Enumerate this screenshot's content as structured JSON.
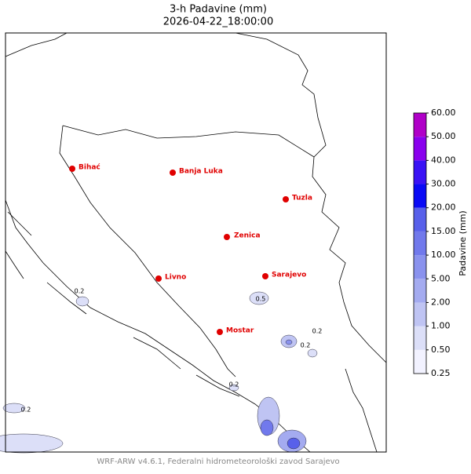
{
  "title": "3-h Padavine (mm)",
  "subtitle": "2026-04-22_18:00:00",
  "cities": [
    {
      "name": "Bihać"
    },
    {
      "name": "Banja Luka"
    },
    {
      "name": "Tuzla"
    },
    {
      "name": "Zenica"
    },
    {
      "name": "Livno"
    },
    {
      "name": "Sarajevo"
    },
    {
      "name": "Mostar"
    }
  ],
  "contour_labels": [
    "0.2",
    "0.5",
    "0.2",
    "0.2",
    "0.2",
    "0.2"
  ],
  "colorbar": {
    "label": "Padavine (mm)",
    "levels": [
      "0.25",
      "0.50",
      "1.00",
      "2.00",
      "5.00",
      "10.00",
      "15.00",
      "20.00",
      "30.00",
      "40.00",
      "50.00",
      "60.00"
    ],
    "colors": [
      "#f2f2ff",
      "#dcdff8",
      "#bfc4f3",
      "#a4abf0",
      "#8a92ee",
      "#7179ec",
      "#5860ea",
      "#0a0af5",
      "#3a12f5",
      "#8a00ee",
      "#b000c8"
    ]
  },
  "footer": "WRF-ARW v4.6.1, Federalni hidrometeorološki zavod Sarajevo"
}
